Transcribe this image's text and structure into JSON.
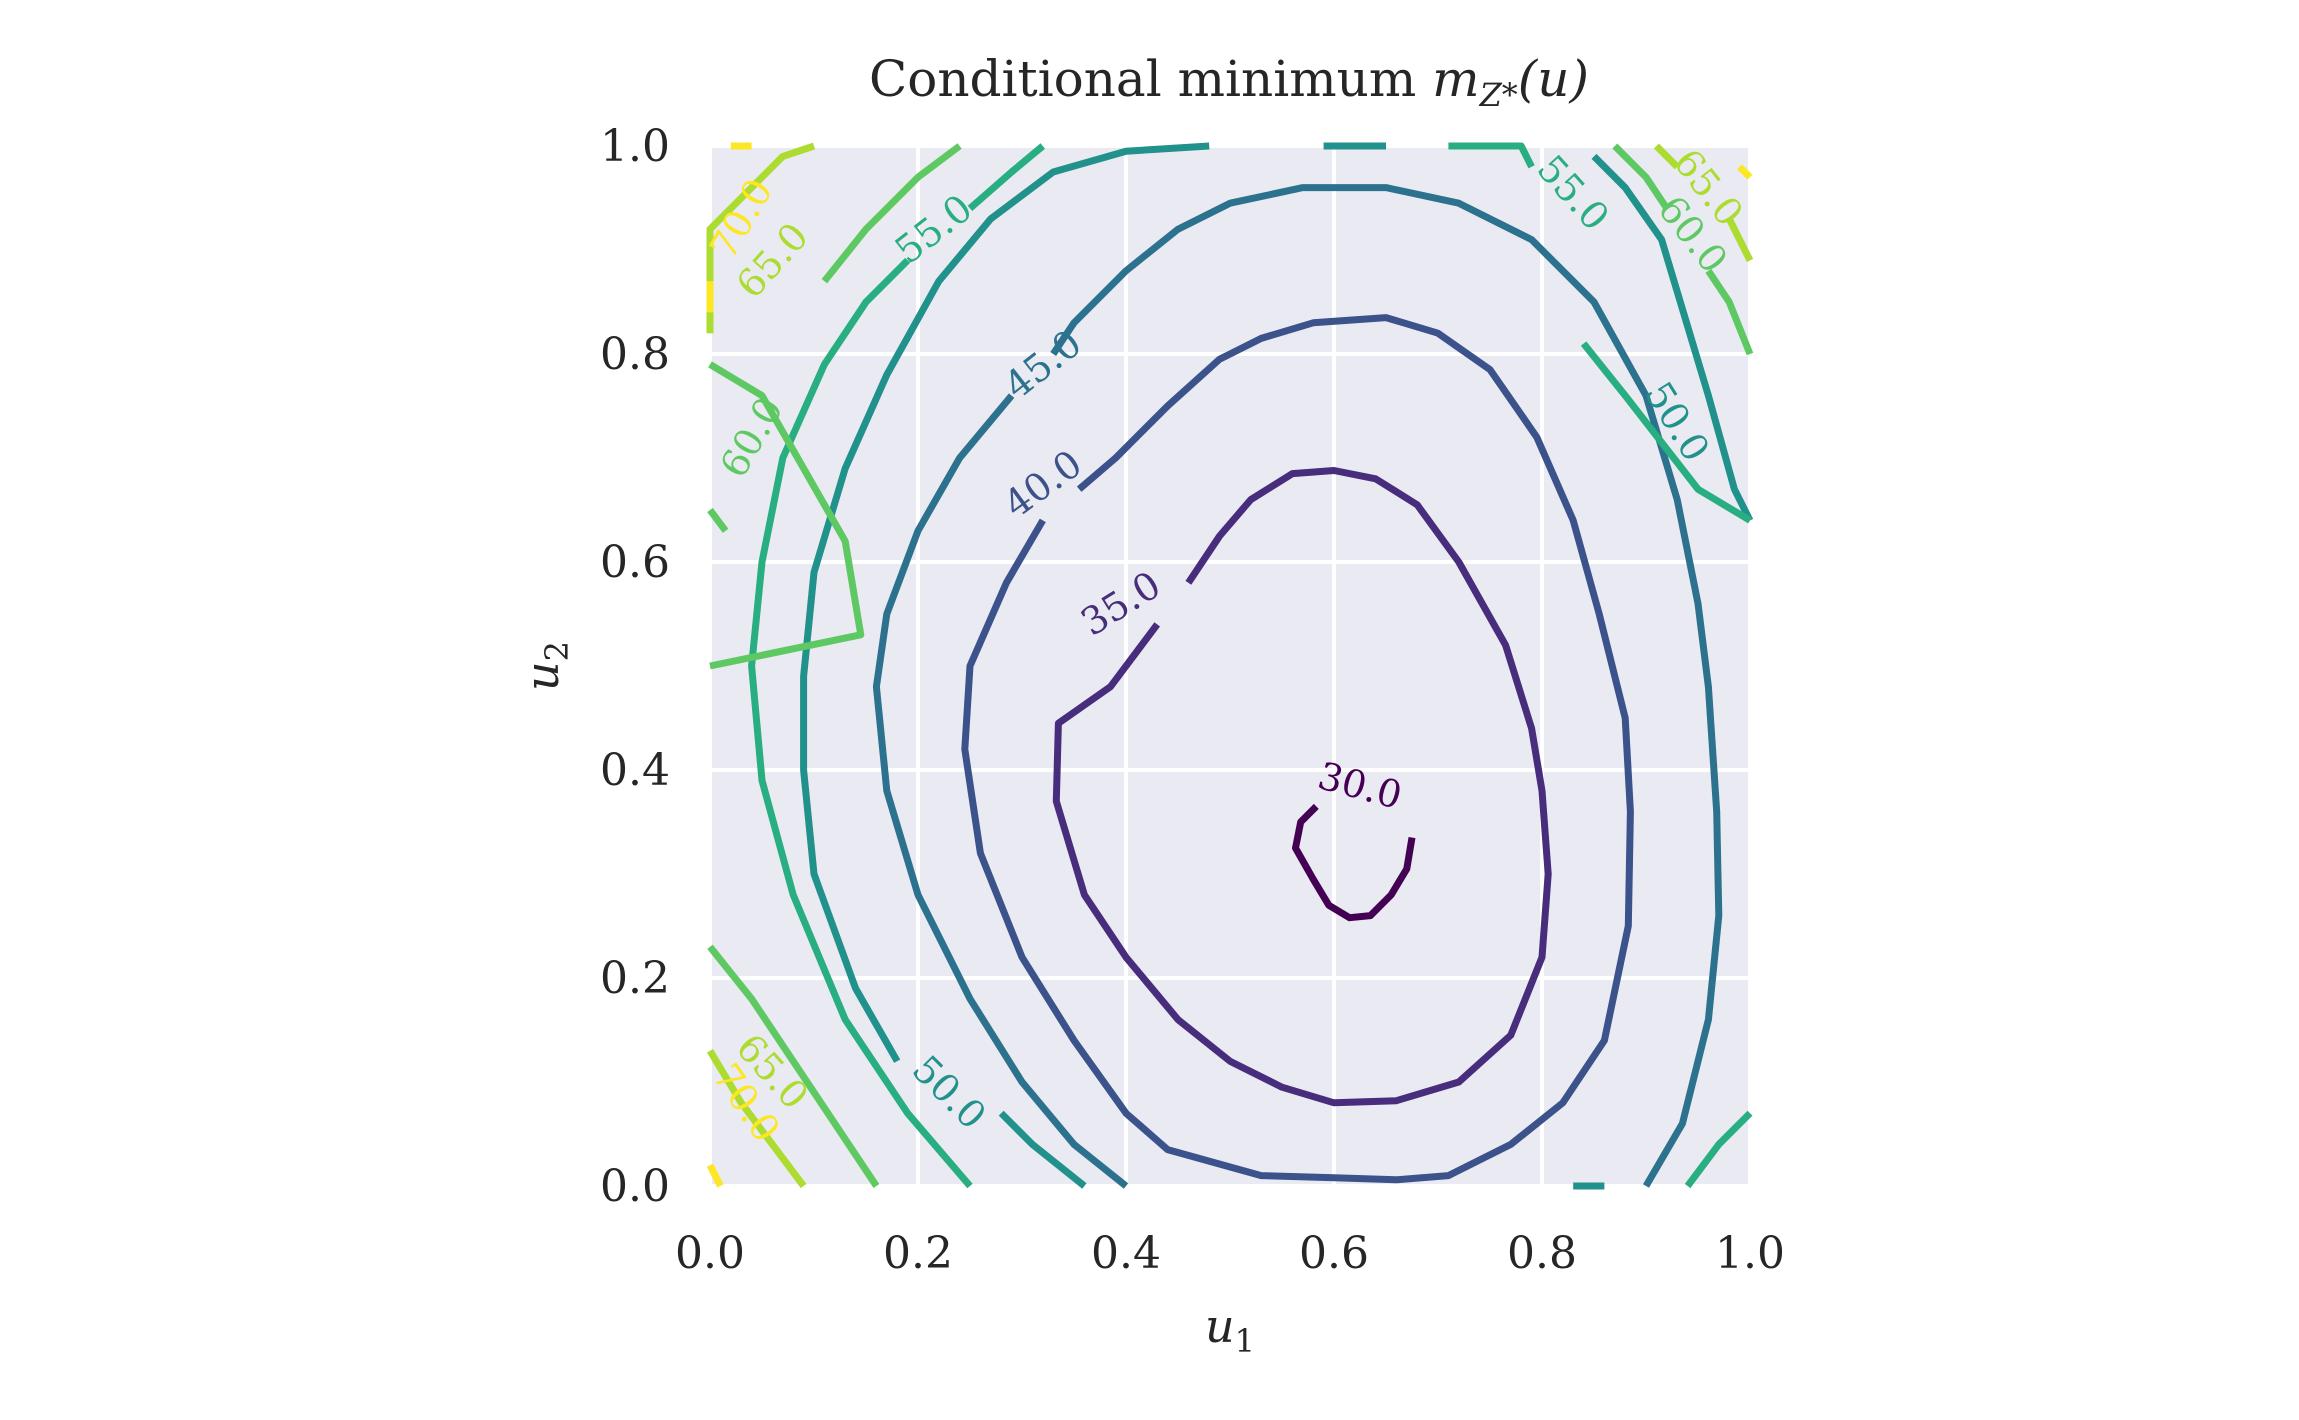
{
  "chart_data": {
    "type": "contour",
    "title": "Conditional minimum m_{Z*}(u)",
    "title_parts": {
      "text": "Conditional minimum ",
      "math_base": "m",
      "math_sub": "Z*",
      "math_args": "(u)"
    },
    "xlabel": {
      "base": "u",
      "sub": "1"
    },
    "ylabel": {
      "base": "u",
      "sub": "2"
    },
    "xlim": [
      0.0,
      1.0
    ],
    "ylim": [
      0.0,
      1.0
    ],
    "xticks": [
      "0.0",
      "0.2",
      "0.4",
      "0.6",
      "0.8",
      "1.0"
    ],
    "yticks": [
      "0.0",
      "0.2",
      "0.4",
      "0.6",
      "0.8",
      "1.0"
    ],
    "xtick_values": [
      0.0,
      0.2,
      0.4,
      0.6,
      0.8,
      1.0
    ],
    "ytick_values": [
      0.0,
      0.2,
      0.4,
      0.6,
      0.8,
      1.0
    ],
    "grid": true,
    "colormap": "viridis",
    "background_color": "#eaeaf2",
    "levels": [
      {
        "value": 30.0,
        "label": "30.0",
        "color": "#440154",
        "segments": [
          [
            [
              0.675,
              0.335
            ],
            [
              0.67,
              0.305
            ],
            [
              0.655,
              0.28
            ],
            [
              0.635,
              0.26
            ],
            [
              0.615,
              0.258
            ],
            [
              0.595,
              0.27
            ],
            [
              0.58,
              0.295
            ],
            [
              0.563,
              0.325
            ],
            [
              0.568,
              0.35
            ],
            [
              0.583,
              0.365
            ]
          ]
        ]
      },
      {
        "value": 35.0,
        "label": "35.0",
        "color": "#472d7b",
        "segments": [
          [
            [
              0.43,
              0.54
            ],
            [
              0.385,
              0.48
            ],
            [
              0.335,
              0.445
            ],
            [
              0.333,
              0.37
            ],
            [
              0.36,
              0.28
            ],
            [
              0.4,
              0.22
            ],
            [
              0.45,
              0.16
            ],
            [
              0.5,
              0.12
            ],
            [
              0.55,
              0.095
            ],
            [
              0.6,
              0.08
            ],
            [
              0.66,
              0.082
            ],
            [
              0.72,
              0.1
            ],
            [
              0.77,
              0.145
            ],
            [
              0.8,
              0.22
            ],
            [
              0.806,
              0.3
            ],
            [
              0.8,
              0.38
            ],
            [
              0.79,
              0.44
            ],
            [
              0.765,
              0.52
            ],
            [
              0.72,
              0.6
            ],
            [
              0.68,
              0.655
            ],
            [
              0.64,
              0.68
            ],
            [
              0.6,
              0.688
            ],
            [
              0.56,
              0.685
            ],
            [
              0.52,
              0.66
            ],
            [
              0.49,
              0.625
            ],
            [
              0.46,
              0.58
            ]
          ]
        ]
      },
      {
        "value": 40.0,
        "label": "40.0",
        "color": "#3b528b",
        "segments": [
          [
            [
              0.32,
              0.64
            ],
            [
              0.285,
              0.58
            ],
            [
              0.25,
              0.5
            ],
            [
              0.245,
              0.42
            ],
            [
              0.26,
              0.32
            ],
            [
              0.3,
              0.22
            ],
            [
              0.35,
              0.14
            ],
            [
              0.4,
              0.07
            ],
            [
              0.44,
              0.035
            ],
            [
              0.53,
              0.01
            ],
            [
              0.6,
              0.008
            ],
            [
              0.66,
              0.006
            ],
            [
              0.71,
              0.01
            ],
            [
              0.77,
              0.04
            ],
            [
              0.82,
              0.08
            ],
            [
              0.86,
              0.14
            ],
            [
              0.883,
              0.25
            ],
            [
              0.885,
              0.36
            ],
            [
              0.88,
              0.45
            ],
            [
              0.855,
              0.55
            ],
            [
              0.83,
              0.64
            ],
            [
              0.795,
              0.72
            ],
            [
              0.75,
              0.785
            ],
            [
              0.7,
              0.82
            ],
            [
              0.65,
              0.835
            ],
            [
              0.58,
              0.83
            ],
            [
              0.53,
              0.815
            ],
            [
              0.49,
              0.795
            ],
            [
              0.44,
              0.75
            ],
            [
              0.39,
              0.7
            ],
            [
              0.355,
              0.67
            ]
          ]
        ]
      },
      {
        "value": 45.0,
        "label": "45.0",
        "color": "#2c728e",
        "segments": [
          [
            [
              0.29,
              0.76
            ],
            [
              0.24,
              0.7
            ],
            [
              0.2,
              0.63
            ],
            [
              0.17,
              0.55
            ],
            [
              0.16,
              0.48
            ],
            [
              0.17,
              0.38
            ],
            [
              0.2,
              0.28
            ],
            [
              0.25,
              0.18
            ],
            [
              0.3,
              0.1
            ],
            [
              0.35,
              0.04
            ],
            [
              0.4,
              0.0
            ]
          ],
          [
            [
              0.9,
              0.0
            ],
            [
              0.935,
              0.06
            ],
            [
              0.96,
              0.16
            ],
            [
              0.97,
              0.26
            ],
            [
              0.968,
              0.36
            ],
            [
              0.96,
              0.48
            ],
            [
              0.95,
              0.56
            ],
            [
              0.93,
              0.66
            ],
            [
              0.9,
              0.76
            ],
            [
              0.85,
              0.85
            ],
            [
              0.79,
              0.91
            ],
            [
              0.72,
              0.945
            ],
            [
              0.65,
              0.96
            ],
            [
              0.57,
              0.96
            ],
            [
              0.5,
              0.945
            ],
            [
              0.45,
              0.92
            ],
            [
              0.4,
              0.88
            ],
            [
              0.35,
              0.83
            ],
            [
              0.33,
              0.8
            ]
          ]
        ]
      },
      {
        "value": 50.0,
        "label": "50.0",
        "color": "#21918c",
        "segments": [
          [
            [
              0.85,
              0.99
            ],
            [
              0.88,
              0.96
            ],
            [
              0.915,
              0.91
            ],
            [
              0.93,
              0.86
            ],
            [
              0.96,
              0.76
            ],
            [
              0.985,
              0.67
            ],
            [
              1.0,
              0.64
            ]
          ],
          [
            [
              0.18,
              0.12
            ],
            [
              0.14,
              0.19
            ],
            [
              0.1,
              0.3
            ],
            [
              0.09,
              0.4
            ],
            [
              0.09,
              0.49
            ],
            [
              0.1,
              0.59
            ],
            [
              0.13,
              0.69
            ],
            [
              0.17,
              0.78
            ],
            [
              0.22,
              0.87
            ],
            [
              0.27,
              0.93
            ],
            [
              0.33,
              0.975
            ],
            [
              0.4,
              0.995
            ],
            [
              0.48,
              1.0
            ]
          ],
          [
            [
              0.36,
              0.0
            ],
            [
              0.31,
              0.04
            ],
            [
              0.28,
              0.07
            ]
          ],
          [
            [
              0.59,
              1.0
            ],
            [
              0.65,
              1.0
            ]
          ],
          [
            [
              0.83,
              0.0
            ],
            [
              0.86,
              0.0
            ]
          ]
        ]
      },
      {
        "value": 55.0,
        "label": "55.0",
        "color": "#28ae80",
        "segments": [
          [
            [
              0.25,
              0.94
            ],
            [
              0.29,
              0.975
            ],
            [
              0.32,
              1.0
            ]
          ],
          [
            [
              0.19,
              0.89
            ],
            [
              0.15,
              0.85
            ],
            [
              0.11,
              0.79
            ],
            [
              0.07,
              0.7
            ],
            [
              0.05,
              0.6
            ],
            [
              0.04,
              0.5
            ],
            [
              0.05,
              0.39
            ],
            [
              0.08,
              0.28
            ],
            [
              0.13,
              0.16
            ],
            [
              0.19,
              0.07
            ],
            [
              0.25,
              0.0
            ]
          ],
          [
            [
              0.71,
              1.0
            ],
            [
              0.78,
              1.0
            ],
            [
              0.79,
              0.98
            ]
          ],
          [
            [
              0.94,
              0.0
            ],
            [
              0.97,
              0.04
            ],
            [
              1.0,
              0.07
            ]
          ],
          [
            [
              0.84,
              0.81
            ],
            [
              0.88,
              0.76
            ],
            [
              0.95,
              0.67
            ],
            [
              1.0,
              0.64
            ]
          ]
        ]
      },
      {
        "value": 60.0,
        "label": "60.0",
        "color": "#5ec962",
        "segments": [
          [
            [
              0.0,
              0.79
            ],
            [
              0.05,
              0.76
            ],
            [
              0.09,
              0.69
            ],
            [
              0.13,
              0.62
            ],
            [
              0.145,
              0.53
            ],
            [
              0.0,
              0.5
            ]
          ],
          [
            [
              0.0,
              0.65
            ],
            [
              0.015,
              0.63
            ]
          ],
          [
            [
              0.0,
              0.23
            ],
            [
              0.04,
              0.18
            ],
            [
              0.08,
              0.12
            ],
            [
              0.12,
              0.06
            ],
            [
              0.16,
              0.0
            ]
          ],
          [
            [
              0.11,
              0.87
            ],
            [
              0.15,
              0.92
            ],
            [
              0.2,
              0.97
            ],
            [
              0.24,
              1.0
            ]
          ],
          [
            [
              0.87,
              1.0
            ],
            [
              0.9,
              0.97
            ],
            [
              0.92,
              0.94
            ]
          ],
          [
            [
              0.96,
              0.88
            ],
            [
              0.98,
              0.85
            ],
            [
              1.0,
              0.8
            ]
          ]
        ]
      },
      {
        "value": 65.0,
        "label": "65.0",
        "color": "#addc30",
        "segments": [
          [
            [
              0.0,
              0.82
            ],
            [
              0.0,
              0.92
            ],
            [
              0.04,
              0.96
            ],
            [
              0.07,
              0.99
            ],
            [
              0.1,
              1.0
            ]
          ],
          [
            [
              0.0,
              0.13
            ],
            [
              0.03,
              0.08
            ],
            [
              0.06,
              0.04
            ],
            [
              0.09,
              0.0
            ]
          ],
          [
            [
              0.91,
              1.0
            ],
            [
              0.93,
              0.98
            ]
          ],
          [
            [
              0.98,
              0.93
            ],
            [
              1.0,
              0.89
            ]
          ]
        ]
      },
      {
        "value": 70.0,
        "label": "70.0",
        "color": "#fde725",
        "segments": [
          [
            [
              0.0,
              0.84
            ],
            [
              0.0,
              0.87
            ]
          ],
          [
            [
              0.02,
              1.0
            ],
            [
              0.04,
              1.0
            ]
          ],
          [
            [
              0.0,
              0.02
            ],
            [
              0.01,
              0.0
            ]
          ],
          [
            [
              0.99,
              0.98
            ],
            [
              1.0,
              0.97
            ]
          ]
        ]
      }
    ],
    "contour_labels": [
      {
        "text": "30.0",
        "level": 30.0,
        "x": 0.625,
        "y": 0.385,
        "rotation": 15
      },
      {
        "text": "35.0",
        "level": 35.0,
        "x": 0.395,
        "y": 0.56,
        "rotation": -32
      },
      {
        "text": "40.0",
        "level": 40.0,
        "x": 0.32,
        "y": 0.675,
        "rotation": -36
      },
      {
        "text": "45.0",
        "level": 45.0,
        "x": 0.32,
        "y": 0.79,
        "rotation": -38
      },
      {
        "text": "50.0",
        "level": 50.0,
        "x": 0.93,
        "y": 0.735,
        "rotation": 58
      },
      {
        "text": "50.0",
        "level": 50.0,
        "x": 0.23,
        "y": 0.09,
        "rotation": 45
      },
      {
        "text": "55.0",
        "level": 55.0,
        "x": 0.215,
        "y": 0.92,
        "rotation": -38
      },
      {
        "text": "55.0",
        "level": 55.0,
        "x": 0.83,
        "y": 0.955,
        "rotation": 48
      },
      {
        "text": "60.0",
        "level": 60.0,
        "x": 0.04,
        "y": 0.72,
        "rotation": -60
      },
      {
        "text": "60.0",
        "level": 60.0,
        "x": 0.945,
        "y": 0.915,
        "rotation": 52
      },
      {
        "text": "65.0",
        "level": 65.0,
        "x": 0.06,
        "y": 0.89,
        "rotation": -48
      },
      {
        "text": "65.0",
        "level": 65.0,
        "x": 0.06,
        "y": 0.11,
        "rotation": 48
      },
      {
        "text": "65.0",
        "level": 65.0,
        "x": 0.96,
        "y": 0.96,
        "rotation": 52
      },
      {
        "text": "70.0",
        "level": 70.0,
        "x": 0.03,
        "y": 0.93,
        "rotation": -60
      },
      {
        "text": "70.0",
        "level": 70.0,
        "x": 0.035,
        "y": 0.08,
        "rotation": 55
      }
    ]
  }
}
